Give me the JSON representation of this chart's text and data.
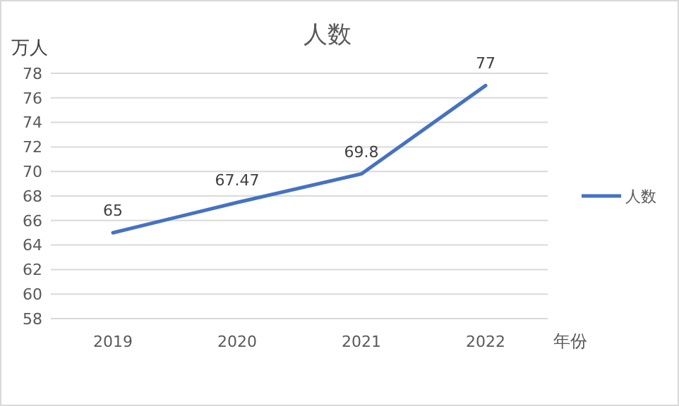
{
  "chart_data": {
    "type": "line",
    "title": "人数",
    "ylabel": "万人",
    "xlabel": "年份",
    "categories": [
      "2019",
      "2020",
      "2021",
      "2022"
    ],
    "series": [
      {
        "name": "人数",
        "color": "#4472c4",
        "values": [
          65,
          67.47,
          69.8,
          77
        ]
      }
    ],
    "ylim": [
      58,
      78
    ],
    "yticks": [
      58,
      60,
      62,
      64,
      66,
      68,
      70,
      72,
      74,
      76,
      78
    ],
    "grid": "y",
    "legend": "right",
    "data_labels": true,
    "marker": "none",
    "line_style": "solid"
  }
}
